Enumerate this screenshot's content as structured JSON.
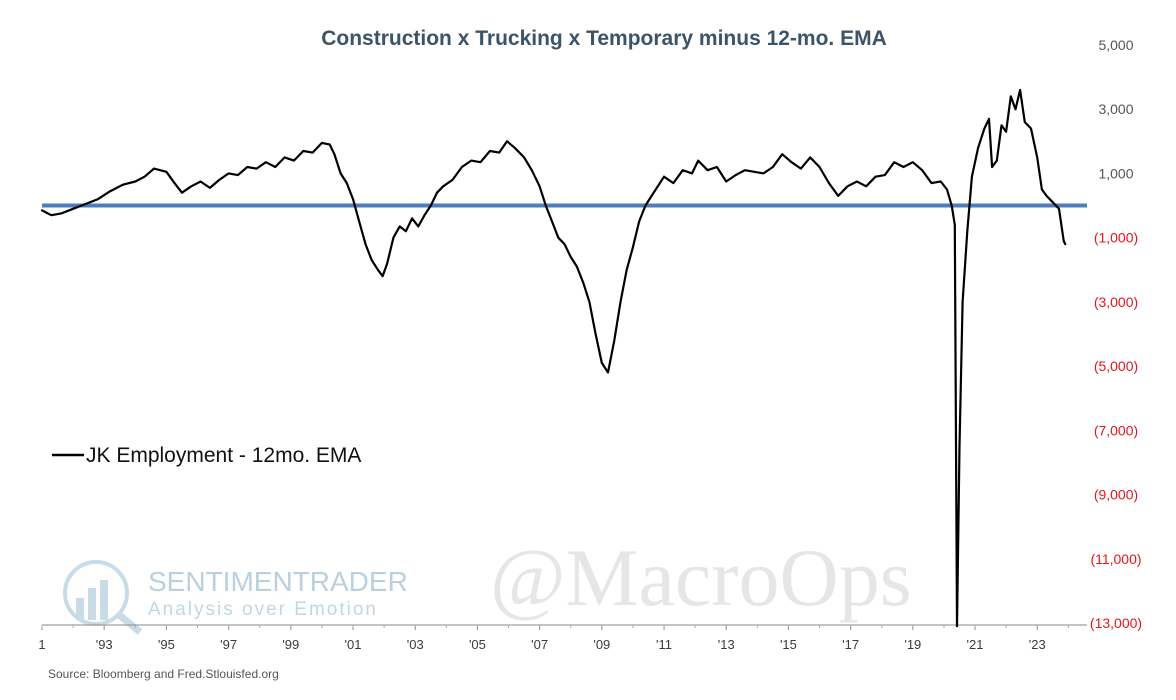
{
  "chart_data": {
    "type": "line",
    "title": "Construction x Trucking x Temporary minus 12-mo. EMA",
    "y_ticks": [
      {
        "value": 5000,
        "label": "5,000"
      },
      {
        "value": 3000,
        "label": "3,000"
      },
      {
        "value": 1000,
        "label": "1,000"
      },
      {
        "value": -1000,
        "label": "(1,000)"
      },
      {
        "value": -3000,
        "label": "(3,000)"
      },
      {
        "value": -5000,
        "label": "(5,000)"
      },
      {
        "value": -7000,
        "label": "(7,000)"
      },
      {
        "value": -9000,
        "label": "(9,000)"
      },
      {
        "value": -11000,
        "label": "(11,000)"
      },
      {
        "value": -13000,
        "label": "(13,000)"
      }
    ],
    "ylim": [
      -13000,
      5000
    ],
    "y_axis_side": "right",
    "positive_tick_color": "#555555",
    "negative_tick_color": "#e8151b",
    "x_ticks": [
      {
        "year": 1991,
        "label": "1"
      },
      {
        "year": 1993,
        "label": "'93"
      },
      {
        "year": 1995,
        "label": "'95"
      },
      {
        "year": 1997,
        "label": "'97"
      },
      {
        "year": 1999,
        "label": "'99"
      },
      {
        "year": 2001,
        "label": "'01"
      },
      {
        "year": 2003,
        "label": "'03"
      },
      {
        "year": 2005,
        "label": "'05"
      },
      {
        "year": 2007,
        "label": "'07"
      },
      {
        "year": 2009,
        "label": "'09"
      },
      {
        "year": 2011,
        "label": "'11"
      },
      {
        "year": 2013,
        "label": "'13"
      },
      {
        "year": 2015,
        "label": "'15"
      },
      {
        "year": 2017,
        "label": "'17"
      },
      {
        "year": 2019,
        "label": "'19"
      },
      {
        "year": 2021,
        "label": "'21"
      },
      {
        "year": 2023,
        "label": "'23"
      }
    ],
    "xlim": [
      1991,
      2024.6
    ],
    "zero_line": {
      "value": 0,
      "color": "#4a7fbf"
    },
    "series": [
      {
        "name": "JK Employment - 12mo. EMA",
        "color": "#000000",
        "points": [
          [
            1991.0,
            -150
          ],
          [
            1991.3,
            -300
          ],
          [
            1991.6,
            -250
          ],
          [
            1992.0,
            -100
          ],
          [
            1992.4,
            50
          ],
          [
            1992.8,
            200
          ],
          [
            1993.2,
            450
          ],
          [
            1993.6,
            650
          ],
          [
            1994.0,
            750
          ],
          [
            1994.3,
            900
          ],
          [
            1994.6,
            1150
          ],
          [
            1995.0,
            1050
          ],
          [
            1995.3,
            650
          ],
          [
            1995.5,
            400
          ],
          [
            1995.8,
            600
          ],
          [
            1996.1,
            750
          ],
          [
            1996.4,
            550
          ],
          [
            1996.7,
            800
          ],
          [
            1997.0,
            1000
          ],
          [
            1997.3,
            950
          ],
          [
            1997.6,
            1200
          ],
          [
            1997.9,
            1150
          ],
          [
            1998.2,
            1350
          ],
          [
            1998.5,
            1200
          ],
          [
            1998.8,
            1500
          ],
          [
            1999.1,
            1400
          ],
          [
            1999.4,
            1700
          ],
          [
            1999.7,
            1650
          ],
          [
            2000.0,
            1950
          ],
          [
            2000.25,
            1900
          ],
          [
            2000.4,
            1600
          ],
          [
            2000.6,
            1000
          ],
          [
            2000.8,
            700
          ],
          [
            2001.0,
            200
          ],
          [
            2001.2,
            -500
          ],
          [
            2001.4,
            -1200
          ],
          [
            2001.6,
            -1700
          ],
          [
            2001.8,
            -2000
          ],
          [
            2001.95,
            -2200
          ],
          [
            2002.1,
            -1800
          ],
          [
            2002.3,
            -1000
          ],
          [
            2002.5,
            -650
          ],
          [
            2002.7,
            -800
          ],
          [
            2002.9,
            -400
          ],
          [
            2003.1,
            -650
          ],
          [
            2003.3,
            -300
          ],
          [
            2003.5,
            0
          ],
          [
            2003.7,
            400
          ],
          [
            2003.9,
            600
          ],
          [
            2004.2,
            800
          ],
          [
            2004.5,
            1200
          ],
          [
            2004.8,
            1400
          ],
          [
            2005.1,
            1350
          ],
          [
            2005.4,
            1700
          ],
          [
            2005.7,
            1650
          ],
          [
            2005.95,
            2000
          ],
          [
            2006.2,
            1800
          ],
          [
            2006.5,
            1500
          ],
          [
            2006.75,
            1100
          ],
          [
            2007.0,
            600
          ],
          [
            2007.2,
            0
          ],
          [
            2007.4,
            -500
          ],
          [
            2007.6,
            -1000
          ],
          [
            2007.8,
            -1200
          ],
          [
            2008.0,
            -1600
          ],
          [
            2008.2,
            -1900
          ],
          [
            2008.4,
            -2400
          ],
          [
            2008.6,
            -3000
          ],
          [
            2008.8,
            -4000
          ],
          [
            2009.0,
            -4900
          ],
          [
            2009.2,
            -5200
          ],
          [
            2009.4,
            -4200
          ],
          [
            2009.6,
            -3000
          ],
          [
            2009.8,
            -2000
          ],
          [
            2010.0,
            -1300
          ],
          [
            2010.2,
            -500
          ],
          [
            2010.4,
            0
          ],
          [
            2010.6,
            300
          ],
          [
            2010.8,
            600
          ],
          [
            2011.0,
            900
          ],
          [
            2011.3,
            700
          ],
          [
            2011.6,
            1100
          ],
          [
            2011.9,
            1000
          ],
          [
            2012.1,
            1400
          ],
          [
            2012.4,
            1100
          ],
          [
            2012.7,
            1200
          ],
          [
            2013.0,
            750
          ],
          [
            2013.3,
            950
          ],
          [
            2013.6,
            1100
          ],
          [
            2013.9,
            1050
          ],
          [
            2014.2,
            1000
          ],
          [
            2014.5,
            1200
          ],
          [
            2014.8,
            1600
          ],
          [
            2015.1,
            1350
          ],
          [
            2015.4,
            1150
          ],
          [
            2015.7,
            1500
          ],
          [
            2016.0,
            1200
          ],
          [
            2016.3,
            700
          ],
          [
            2016.6,
            300
          ],
          [
            2016.9,
            600
          ],
          [
            2017.2,
            750
          ],
          [
            2017.5,
            600
          ],
          [
            2017.8,
            900
          ],
          [
            2018.1,
            950
          ],
          [
            2018.4,
            1350
          ],
          [
            2018.7,
            1200
          ],
          [
            2019.0,
            1350
          ],
          [
            2019.3,
            1100
          ],
          [
            2019.6,
            700
          ],
          [
            2019.9,
            750
          ],
          [
            2020.1,
            500
          ],
          [
            2020.25,
            0
          ],
          [
            2020.35,
            -600
          ],
          [
            2020.42,
            -13100
          ],
          [
            2020.5,
            -7500
          ],
          [
            2020.6,
            -3000
          ],
          [
            2020.75,
            -800
          ],
          [
            2020.9,
            900
          ],
          [
            2021.1,
            1800
          ],
          [
            2021.3,
            2400
          ],
          [
            2021.45,
            2700
          ],
          [
            2021.55,
            1200
          ],
          [
            2021.7,
            1400
          ],
          [
            2021.85,
            2500
          ],
          [
            2022.0,
            2300
          ],
          [
            2022.15,
            3400
          ],
          [
            2022.3,
            3000
          ],
          [
            2022.45,
            3600
          ],
          [
            2022.6,
            2600
          ],
          [
            2022.8,
            2400
          ],
          [
            2023.0,
            1500
          ],
          [
            2023.15,
            500
          ],
          [
            2023.3,
            300
          ],
          [
            2023.5,
            100
          ],
          [
            2023.7,
            -100
          ],
          [
            2023.85,
            -1100
          ],
          [
            2023.9,
            -1200
          ]
        ]
      }
    ],
    "legend_position": "left",
    "grid": false
  },
  "watermarks": {
    "brand": "SENTIMENTRADER",
    "tagline": "Analysis over Emotion",
    "handle": "@MacroOps"
  },
  "source": "Source: Bloomberg and Fred.Stlouisfed.org"
}
